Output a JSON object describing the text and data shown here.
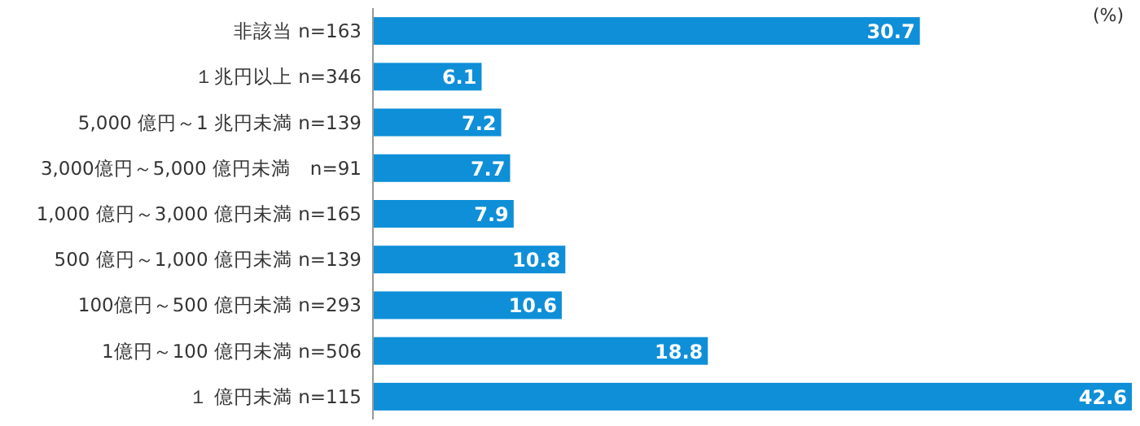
{
  "chart_data": {
    "type": "bar",
    "orientation": "horizontal",
    "data_labels": true,
    "color": "#0e8fd8",
    "categories": [
      "非該当 n=163",
      "１兆円以上 n=346",
      "5,000 億円～1 兆円未満 n=139",
      "3,000億円～5,000 億円未満　n=91",
      "1,000 億円～3,000 億円未満 n=165",
      "500 億円～1,000 億円未満 n=139",
      "100億円～500 億円未満 n=293",
      "1億円～100 億円未満 n=506",
      "１ 億円未満 n=115"
    ],
    "values": [
      30.7,
      6.1,
      7.2,
      7.7,
      7.9,
      10.8,
      10.6,
      18.8,
      42.6
    ],
    "annotations": [
      "(%)"
    ]
  }
}
